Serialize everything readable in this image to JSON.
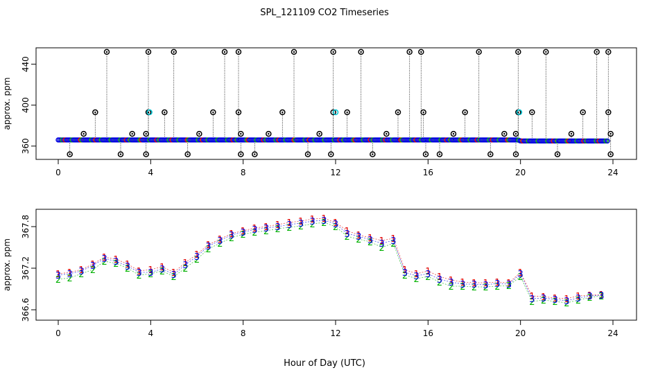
{
  "title": "SPL_121109  CO2 Timeseries",
  "xlabel": "Hour of Day (UTC)",
  "chart_data": [
    {
      "type": "scatter",
      "panel": "top",
      "ylabel": "approx. ppm",
      "xlim": [
        0,
        24
      ],
      "ylim": [
        347,
        456
      ],
      "xticks": [
        0,
        4,
        8,
        12,
        16,
        20,
        24
      ],
      "yticks": [
        360,
        400,
        440
      ],
      "markers": "circles, colored by series, with dotted vertical spike lines",
      "baseline": {
        "x": [
          0.0,
          3.9,
          3.95,
          19.9,
          20.0,
          23.8
        ],
        "y": [
          366,
          366,
          366,
          366,
          365,
          365
        ]
      },
      "spikes": [
        {
          "x": 0.5,
          "y": 352
        },
        {
          "x": 1.1,
          "y": 372
        },
        {
          "x": 2.1,
          "y": 452
        },
        {
          "x": 1.6,
          "y": 393
        },
        {
          "x": 2.7,
          "y": 352
        },
        {
          "x": 3.2,
          "y": 372
        },
        {
          "x": 3.8,
          "y": 352
        },
        {
          "x": 3.8,
          "y": 372
        },
        {
          "x": 3.9,
          "y": 452
        },
        {
          "x": 3.9,
          "y": 393
        },
        {
          "x": 4.6,
          "y": 393
        },
        {
          "x": 5.0,
          "y": 452
        },
        {
          "x": 5.6,
          "y": 352
        },
        {
          "x": 6.1,
          "y": 372
        },
        {
          "x": 6.7,
          "y": 393
        },
        {
          "x": 7.2,
          "y": 452
        },
        {
          "x": 7.8,
          "y": 452
        },
        {
          "x": 7.8,
          "y": 393
        },
        {
          "x": 7.9,
          "y": 372
        },
        {
          "x": 7.9,
          "y": 352
        },
        {
          "x": 8.5,
          "y": 352
        },
        {
          "x": 9.1,
          "y": 372
        },
        {
          "x": 9.7,
          "y": 393
        },
        {
          "x": 10.2,
          "y": 452
        },
        {
          "x": 10.8,
          "y": 352
        },
        {
          "x": 11.3,
          "y": 372
        },
        {
          "x": 11.8,
          "y": 352
        },
        {
          "x": 11.9,
          "y": 452
        },
        {
          "x": 11.9,
          "y": 393
        },
        {
          "x": 12.5,
          "y": 393
        },
        {
          "x": 13.1,
          "y": 452
        },
        {
          "x": 13.6,
          "y": 352
        },
        {
          "x": 14.2,
          "y": 372
        },
        {
          "x": 14.7,
          "y": 393
        },
        {
          "x": 15.2,
          "y": 452
        },
        {
          "x": 15.7,
          "y": 452
        },
        {
          "x": 15.8,
          "y": 393
        },
        {
          "x": 15.9,
          "y": 352
        },
        {
          "x": 16.5,
          "y": 352
        },
        {
          "x": 17.1,
          "y": 372
        },
        {
          "x": 17.6,
          "y": 393
        },
        {
          "x": 18.2,
          "y": 452
        },
        {
          "x": 18.7,
          "y": 352
        },
        {
          "x": 19.3,
          "y": 372
        },
        {
          "x": 19.8,
          "y": 352
        },
        {
          "x": 19.8,
          "y": 372
        },
        {
          "x": 19.9,
          "y": 452
        },
        {
          "x": 19.9,
          "y": 393
        },
        {
          "x": 20.5,
          "y": 393
        },
        {
          "x": 21.1,
          "y": 452
        },
        {
          "x": 21.6,
          "y": 352
        },
        {
          "x": 22.2,
          "y": 372
        },
        {
          "x": 22.7,
          "y": 393
        },
        {
          "x": 23.3,
          "y": 452
        },
        {
          "x": 23.8,
          "y": 452
        },
        {
          "x": 23.8,
          "y": 393
        },
        {
          "x": 23.9,
          "y": 372
        },
        {
          "x": 23.9,
          "y": 352
        }
      ],
      "cyan_points": [
        {
          "x": 3.95,
          "y": 393
        },
        {
          "x": 12.0,
          "y": 393
        },
        {
          "x": 19.95,
          "y": 393
        }
      ]
    },
    {
      "type": "scatter",
      "panel": "bottom",
      "ylabel": "approx. ppm",
      "xlim": [
        0,
        24
      ],
      "ylim": [
        366.45,
        368.05
      ],
      "xticks": [
        0,
        4,
        8,
        12,
        16,
        20,
        24
      ],
      "yticks": [
        366.6,
        367.2,
        367.8
      ],
      "markers": "digits 1, 2, 3 as plot symbols",
      "series": [
        {
          "name": "1",
          "color": "#e00000",
          "x": [
            0,
            0.5,
            1.0,
            1.5,
            2.0,
            2.5,
            3.0,
            3.5,
            4.0,
            4.5,
            5.0,
            5.5,
            6.0,
            6.5,
            7.0,
            7.5,
            8.0,
            8.5,
            9.0,
            9.5,
            10.0,
            10.5,
            11.0,
            11.5,
            12.0,
            12.5,
            13.0,
            13.5,
            14.0,
            14.5,
            15.0,
            15.5,
            16.0,
            16.5,
            17.0,
            17.5,
            18.0,
            18.5,
            19.0,
            19.5,
            20.0,
            20.5,
            21.0,
            21.5,
            22.0,
            22.5,
            23.0,
            23.5
          ],
          "y": [
            367.12,
            367.14,
            367.18,
            367.26,
            367.36,
            367.33,
            367.26,
            367.16,
            367.18,
            367.22,
            367.14,
            367.28,
            367.4,
            367.54,
            367.62,
            367.7,
            367.74,
            367.78,
            367.8,
            367.83,
            367.86,
            367.88,
            367.91,
            367.92,
            367.86,
            367.74,
            367.68,
            367.64,
            367.6,
            367.63,
            367.18,
            367.12,
            367.16,
            367.08,
            367.03,
            367.0,
            366.99,
            366.99,
            367.0,
            366.99,
            367.14,
            366.8,
            366.79,
            366.77,
            366.76,
            366.8,
            366.81,
            366.82
          ]
        },
        {
          "name": "2",
          "color": "#00b000",
          "x": [
            0,
            0.5,
            1.0,
            1.5,
            2.0,
            2.5,
            3.0,
            3.5,
            4.0,
            4.5,
            5.0,
            5.5,
            6.0,
            6.5,
            7.0,
            7.5,
            8.0,
            8.5,
            9.0,
            9.5,
            10.0,
            10.5,
            11.0,
            11.5,
            12.0,
            12.5,
            13.0,
            13.5,
            14.0,
            14.5,
            15.0,
            15.5,
            16.0,
            16.5,
            17.0,
            17.5,
            18.0,
            18.5,
            19.0,
            19.5,
            20.0,
            20.5,
            21.0,
            21.5,
            22.0,
            22.5,
            23.0,
            23.5
          ],
          "y": [
            367.04,
            367.06,
            367.12,
            367.18,
            367.3,
            367.27,
            367.2,
            367.1,
            367.12,
            367.16,
            367.08,
            367.2,
            367.33,
            367.48,
            367.56,
            367.64,
            367.69,
            367.72,
            367.74,
            367.77,
            367.79,
            367.81,
            367.84,
            367.86,
            367.8,
            367.66,
            367.62,
            367.58,
            367.5,
            367.56,
            367.1,
            367.05,
            367.08,
            367.0,
            366.94,
            366.94,
            366.93,
            366.93,
            366.94,
            366.95,
            367.08,
            366.72,
            366.74,
            366.72,
            366.7,
            366.74,
            366.78,
            366.8
          ]
        },
        {
          "name": "3",
          "color": "#0000e0",
          "x": [
            0,
            0.5,
            1.0,
            1.5,
            2.0,
            2.5,
            3.0,
            3.5,
            4.0,
            4.5,
            5.0,
            5.5,
            6.0,
            6.5,
            7.0,
            7.5,
            8.0,
            8.5,
            9.0,
            9.5,
            10.0,
            10.5,
            11.0,
            11.5,
            12.0,
            12.5,
            13.0,
            13.5,
            14.0,
            14.5,
            15.0,
            15.5,
            16.0,
            16.5,
            17.0,
            17.5,
            18.0,
            18.5,
            19.0,
            19.5,
            20.0,
            20.5,
            21.0,
            21.5,
            22.0,
            22.5,
            23.0,
            23.5
          ],
          "y": [
            367.1,
            367.12,
            367.16,
            367.24,
            367.34,
            367.3,
            367.23,
            367.14,
            367.14,
            367.19,
            367.11,
            367.25,
            367.37,
            367.52,
            367.6,
            367.68,
            367.72,
            367.76,
            367.78,
            367.8,
            367.83,
            367.85,
            367.88,
            367.89,
            367.84,
            367.7,
            367.66,
            367.61,
            367.56,
            367.6,
            367.14,
            367.09,
            367.12,
            367.04,
            367.0,
            366.97,
            366.97,
            366.96,
            366.98,
            366.97,
            367.12,
            366.76,
            366.77,
            366.75,
            366.73,
            366.77,
            366.8,
            366.81
          ]
        }
      ]
    }
  ]
}
